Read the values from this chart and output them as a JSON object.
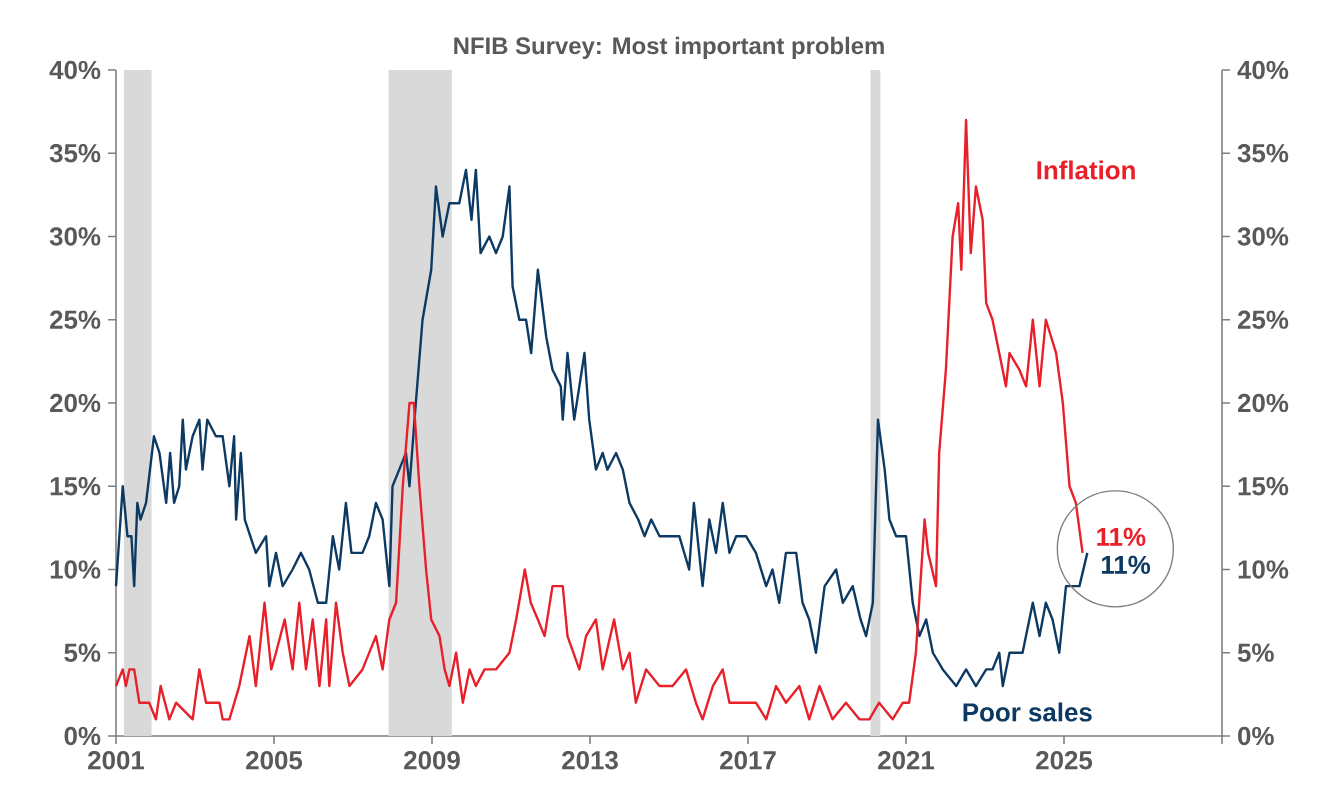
{
  "chart_data": {
    "type": "line",
    "title": "NFIB Survey: Most important problem",
    "xlim": [
      2001,
      2029
    ],
    "xticks": [
      2001,
      2005,
      2009,
      2013,
      2017,
      2021,
      2025,
      {
        "value": 2029,
        "label": null
      }
    ],
    "ylim": [
      0,
      40
    ],
    "yticks": [
      {
        "value": 0,
        "label": "0%"
      },
      {
        "value": 5,
        "label": "5%"
      },
      {
        "value": 10,
        "label": "10%"
      },
      {
        "value": 15,
        "label": "15%"
      },
      {
        "value": 20,
        "label": "20%"
      },
      {
        "value": 25,
        "label": "25%"
      },
      {
        "value": 30,
        "label": "30%"
      },
      {
        "value": 35,
        "label": "35%"
      },
      {
        "value": 40,
        "label": "40%"
      }
    ],
    "y2lim": [
      0,
      40
    ],
    "y2ticks": [
      {
        "value": 0,
        "label": "0%"
      },
      {
        "value": 5,
        "label": "5%"
      },
      {
        "value": 10,
        "label": "10%"
      },
      {
        "value": 15,
        "label": "15%"
      },
      {
        "value": 20,
        "label": "20%"
      },
      {
        "value": 25,
        "label": "25%"
      },
      {
        "value": 30,
        "label": "30%"
      },
      {
        "value": 35,
        "label": "35%"
      },
      {
        "value": 40,
        "label": "40%"
      }
    ],
    "bands": [
      {
        "axis": "x",
        "from": 2001.2,
        "to": 2001.9,
        "color": "#d9d9d9"
      },
      {
        "axis": "x",
        "from": 2007.9,
        "to": 2009.5,
        "color": "#d9d9d9"
      },
      {
        "axis": "x",
        "from": 2020.1,
        "to": 2020.35,
        "color": "#d9d9d9"
      }
    ],
    "series": [
      {
        "name": "Poor sales",
        "color": "#0d3a63",
        "value_labels": [
          null,
          null,
          null,
          null,
          null,
          null,
          null,
          null,
          null,
          null,
          null,
          null,
          null,
          null,
          null,
          null,
          null,
          null,
          null,
          null,
          null,
          null,
          null,
          null,
          null,
          null,
          null,
          null,
          null,
          null,
          null,
          null,
          null,
          null,
          null,
          null,
          null,
          null,
          null,
          null,
          null,
          null,
          null,
          null,
          null,
          null,
          null,
          null,
          null,
          null,
          null,
          null,
          null,
          null,
          null,
          null,
          null,
          null,
          null,
          null,
          null,
          null,
          null,
          null,
          null,
          null,
          null,
          null,
          null,
          null,
          null,
          null,
          null,
          null,
          null,
          null,
          null,
          null,
          null,
          null,
          null,
          null,
          null,
          null,
          null,
          null,
          null,
          null,
          null,
          null,
          null,
          null,
          null,
          null,
          null,
          null,
          null,
          null,
          null,
          null,
          null,
          null,
          null,
          null,
          null,
          null,
          null,
          null,
          null,
          null,
          null,
          null,
          null,
          null,
          null,
          null,
          null,
          null,
          null,
          null,
          null,
          null,
          null,
          null,
          null,
          null,
          null,
          null,
          null,
          null,
          null,
          null,
          null,
          null,
          null,
          null,
          null,
          null,
          null,
          null,
          "11%"
        ],
        "x": [
          2001.0,
          2001.17,
          2001.29,
          2001.39,
          2001.46,
          2001.54,
          2001.62,
          2001.76,
          2001.96,
          2002.1,
          2002.27,
          2002.37,
          2002.47,
          2002.6,
          2002.69,
          2002.77,
          2002.94,
          2003.11,
          2003.19,
          2003.31,
          2003.53,
          2003.7,
          2003.87,
          2003.99,
          2004.04,
          2004.16,
          2004.26,
          2004.54,
          2004.8,
          2004.88,
          2005.05,
          2005.22,
          2005.47,
          2005.68,
          2005.89,
          2006.11,
          2006.32,
          2006.49,
          2006.65,
          2006.82,
          2006.96,
          2007.24,
          2007.41,
          2007.58,
          2007.75,
          2007.92,
          2008.0,
          2008.17,
          2008.34,
          2008.43,
          2008.59,
          2008.76,
          2008.98,
          2009.1,
          2009.27,
          2009.44,
          2009.69,
          2009.86,
          2010.0,
          2010.11,
          2010.23,
          2010.45,
          2010.62,
          2010.79,
          2010.96,
          2011.04,
          2011.21,
          2011.38,
          2011.51,
          2011.68,
          2011.89,
          2012.05,
          2012.26,
          2012.31,
          2012.43,
          2012.6,
          2012.86,
          2012.98,
          2013.15,
          2013.32,
          2013.44,
          2013.66,
          2013.83,
          2014.0,
          2014.22,
          2014.38,
          2014.55,
          2014.76,
          2015.26,
          2015.51,
          2015.63,
          2015.85,
          2016.02,
          2016.19,
          2016.36,
          2016.53,
          2016.7,
          2016.95,
          2017.2,
          2017.46,
          2017.62,
          2017.79,
          2017.96,
          2018.22,
          2018.38,
          2018.55,
          2018.72,
          2018.94,
          2019.23,
          2019.4,
          2019.65,
          2019.85,
          2019.99,
          2020.16,
          2020.29,
          2020.46,
          2020.58,
          2020.75,
          2021.0,
          2021.17,
          2021.34,
          2021.51,
          2021.68,
          2021.93,
          2022.27,
          2022.52,
          2022.77,
          2023.03,
          2023.19,
          2023.36,
          2023.45,
          2023.62,
          2023.95,
          2024.21,
          2024.38,
          2024.54,
          2024.71,
          2024.88,
          2025.05,
          2025.39,
          2025.59
        ],
        "values": [
          9,
          15,
          12,
          12,
          9,
          14,
          13,
          14,
          18,
          17,
          14,
          17,
          14,
          15,
          19,
          16,
          18,
          19,
          16,
          19,
          18,
          18,
          15,
          18,
          13,
          17,
          13,
          11,
          12,
          9,
          11,
          9,
          10,
          11,
          10,
          8,
          8,
          12,
          10,
          14,
          11,
          11,
          12,
          14,
          13,
          9,
          15,
          16,
          17,
          15,
          20,
          25,
          28,
          33,
          30,
          32,
          32,
          34,
          31,
          34,
          29,
          30,
          29,
          30,
          33,
          27,
          25,
          25,
          23,
          28,
          24,
          22,
          21,
          19,
          23,
          19,
          23,
          19,
          16,
          17,
          16,
          17,
          16,
          14,
          13,
          12,
          13,
          12,
          12,
          10,
          14,
          9,
          13,
          11,
          14,
          11,
          12,
          12,
          11,
          9,
          10,
          8,
          11,
          11,
          8,
          7,
          5,
          9,
          10,
          8,
          9,
          7,
          6,
          8,
          19,
          16,
          13,
          12,
          12,
          8,
          6,
          7,
          5,
          4,
          3,
          4,
          3,
          4,
          4,
          5,
          3,
          5,
          5,
          8,
          6,
          8,
          7,
          5,
          9,
          9,
          11
        ]
      },
      {
        "name": "Inflation",
        "color": "#e8202a",
        "value_labels": [
          null,
          null,
          null,
          null,
          null,
          null,
          null,
          null,
          null,
          null,
          null,
          null,
          null,
          null,
          null,
          null,
          null,
          null,
          null,
          null,
          null,
          null,
          null,
          null,
          null,
          null,
          null,
          null,
          null,
          null,
          null,
          null,
          null,
          null,
          null,
          null,
          null,
          null,
          null,
          null,
          null,
          null,
          null,
          null,
          null,
          null,
          null,
          null,
          null,
          null,
          null,
          null,
          null,
          null,
          null,
          null,
          null,
          null,
          null,
          null,
          null,
          null,
          null,
          null,
          null,
          null,
          null,
          null,
          null,
          null,
          null,
          null,
          null,
          null,
          null,
          null,
          null,
          null,
          null,
          null,
          null,
          null,
          null,
          null,
          null,
          null,
          null,
          null,
          null,
          null,
          null,
          null,
          null,
          null,
          null,
          null,
          null,
          null,
          null,
          null,
          null,
          null,
          null,
          null,
          null,
          null,
          null,
          null,
          null,
          null,
          null,
          null,
          null,
          null,
          null,
          null,
          null,
          null,
          null,
          null,
          null,
          null,
          null,
          "11%"
        ],
        "x": [
          2001.0,
          2001.17,
          2001.25,
          2001.34,
          2001.46,
          2001.59,
          2001.84,
          2002.01,
          2002.13,
          2002.35,
          2002.52,
          2002.94,
          2003.11,
          2003.28,
          2003.62,
          2003.7,
          2003.87,
          2004.12,
          2004.38,
          2004.54,
          2004.76,
          2004.93,
          2005.05,
          2005.27,
          2005.47,
          2005.64,
          2005.81,
          2005.98,
          2006.15,
          2006.32,
          2006.4,
          2006.57,
          2006.74,
          2006.91,
          2007.24,
          2007.58,
          2007.75,
          2007.92,
          2008.09,
          2008.26,
          2008.43,
          2008.54,
          2008.68,
          2008.85,
          2008.98,
          2009.19,
          2009.32,
          2009.44,
          2009.61,
          2009.78,
          2009.95,
          2010.11,
          2010.33,
          2010.62,
          2010.96,
          2011.13,
          2011.35,
          2011.5,
          2011.68,
          2011.85,
          2012.05,
          2012.31,
          2012.43,
          2012.73,
          2012.9,
          2013.15,
          2013.32,
          2013.61,
          2013.83,
          2014.0,
          2014.16,
          2014.42,
          2014.76,
          2015.09,
          2015.43,
          2015.68,
          2015.85,
          2016.11,
          2016.36,
          2016.53,
          2016.95,
          2017.2,
          2017.46,
          2017.71,
          2017.96,
          2018.3,
          2018.55,
          2018.81,
          2019.14,
          2019.48,
          2019.82,
          2020.07,
          2020.32,
          2020.66,
          2020.92,
          2021.08,
          2021.25,
          2021.47,
          2021.56,
          2021.76,
          2021.84,
          2022.01,
          2022.18,
          2022.32,
          2022.4,
          2022.52,
          2022.64,
          2022.77,
          2022.94,
          2023.03,
          2023.19,
          2023.36,
          2023.53,
          2023.62,
          2023.87,
          2024.04,
          2024.21,
          2024.38,
          2024.54,
          2024.8,
          2024.97,
          2025.14,
          2025.3,
          2025.47
        ],
        "values": [
          3,
          4,
          3,
          4,
          4,
          2,
          2,
          1,
          3,
          1,
          2,
          1,
          4,
          2,
          2,
          1,
          1,
          3,
          6,
          3,
          8,
          4,
          5,
          7,
          4,
          8,
          4,
          7,
          3,
          7,
          3,
          8,
          5,
          3,
          4,
          6,
          4,
          7,
          8,
          15,
          20,
          20,
          15,
          10,
          7,
          6,
          4,
          3,
          5,
          2,
          4,
          3,
          4,
          4,
          5,
          7,
          10,
          8,
          7,
          6,
          9,
          9,
          6,
          4,
          6,
          7,
          4,
          7,
          4,
          5,
          2,
          4,
          3,
          3,
          4,
          2,
          1,
          3,
          4,
          2,
          2,
          2,
          1,
          3,
          2,
          3,
          1,
          3,
          1,
          2,
          1,
          1,
          2,
          1,
          2,
          2,
          5,
          13,
          11,
          9,
          17,
          22,
          30,
          32,
          28,
          37,
          29,
          33,
          31,
          26,
          25,
          23,
          21,
          23,
          22,
          21,
          25,
          21,
          25,
          23,
          20,
          15,
          14,
          11
        ]
      }
    ]
  }
}
